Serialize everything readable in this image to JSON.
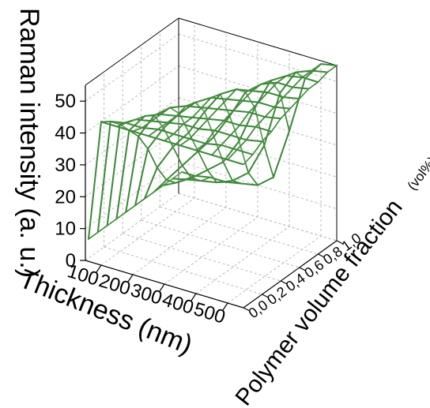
{
  "chart_data": {
    "type": "surface",
    "xlabel": "Thickness (nm)",
    "ylabel": "Polymer volume fraction",
    "ylabel_unit": "(vol%)",
    "zlabel": "Raman intensity (a. u.)",
    "x_ticks": [
      "100",
      "200",
      "300",
      "400",
      "500"
    ],
    "y_ticks": [
      "0,0",
      "0,2",
      "0,4",
      "0,6",
      "0,8",
      "1,0"
    ],
    "z_ticks": [
      "0",
      "10",
      "20",
      "30",
      "40",
      "50"
    ],
    "xlim": [
      50,
      550
    ],
    "ylim": [
      0,
      1
    ],
    "zlim": [
      0,
      55
    ],
    "grid": true,
    "surface": {
      "x": [
        60,
        100,
        150,
        200,
        250,
        300,
        350,
        400,
        450,
        500,
        550
      ],
      "y": [
        0.0,
        0.1,
        0.2,
        0.3,
        0.4,
        0.5,
        0.6,
        0.7,
        0.8,
        0.9,
        1.0
      ],
      "z_formula_note": "",
      "z": [
        [
          7,
          45,
          45,
          45,
          45,
          45,
          45,
          45,
          45,
          45,
          45
        ],
        [
          7,
          43,
          44,
          44,
          45,
          45,
          45,
          45,
          46,
          46,
          46
        ],
        [
          7,
          40,
          43,
          44,
          45,
          46,
          46,
          47,
          47,
          47,
          48
        ],
        [
          7,
          36,
          42,
          44,
          45,
          46,
          47,
          48,
          48,
          49,
          49
        ],
        [
          7,
          32,
          40,
          44,
          46,
          47,
          48,
          49,
          50,
          50,
          51
        ],
        [
          7,
          26,
          34,
          40,
          45,
          48,
          49,
          50,
          51,
          51,
          52
        ],
        [
          7,
          18,
          26,
          32,
          40,
          47,
          50,
          51,
          52,
          52,
          53
        ],
        [
          7,
          12,
          18,
          24,
          30,
          38,
          47,
          51,
          53,
          53,
          54
        ],
        [
          7,
          9,
          12,
          16,
          20,
          28,
          40,
          50,
          53,
          54,
          54
        ],
        [
          7,
          8,
          9,
          10,
          12,
          16,
          26,
          44,
          52,
          54,
          55
        ],
        [
          7,
          7,
          8,
          8,
          9,
          10,
          14,
          30,
          48,
          54,
          55
        ]
      ],
      "color": "#3f8a3a"
    }
  }
}
